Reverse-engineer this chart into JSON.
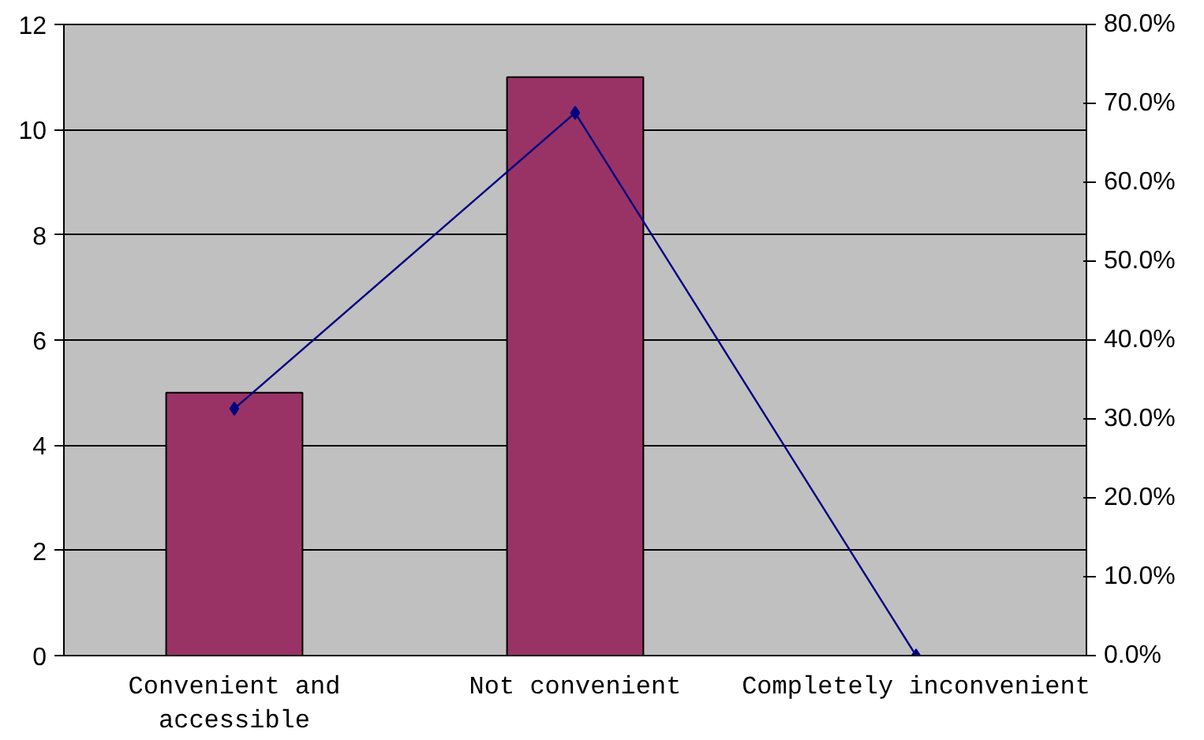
{
  "chart_data": {
    "type": "bar",
    "categories": [
      "Convenient and accessible",
      "Not convenient",
      "Completely inconvenient"
    ],
    "series": [
      {
        "color": "#993366",
        "values": [
          5,
          11,
          0
        ]
      },
      {
        "type": "line",
        "color": "#000080",
        "axis": "y2",
        "marker": "diamond",
        "values": [
          31.3,
          68.8,
          0
        ]
      }
    ],
    "ylim": [
      0,
      12
    ],
    "yticks": [
      0,
      2,
      4,
      6,
      8,
      10,
      12
    ],
    "y2lim": [
      0,
      80
    ],
    "y2ticks": [
      {
        "value": 0,
        "label": "0.0%"
      },
      {
        "value": 10,
        "label": "10.0%"
      },
      {
        "value": 20,
        "label": "20.0%"
      },
      {
        "value": 30,
        "label": "30.0%"
      },
      {
        "value": 40,
        "label": "40.0%"
      },
      {
        "value": 50,
        "label": "50.0%"
      },
      {
        "value": 60,
        "label": "60.0%"
      },
      {
        "value": 70,
        "label": "70.0%"
      },
      {
        "value": 80,
        "label": "80.0%"
      }
    ],
    "grid": "y"
  }
}
